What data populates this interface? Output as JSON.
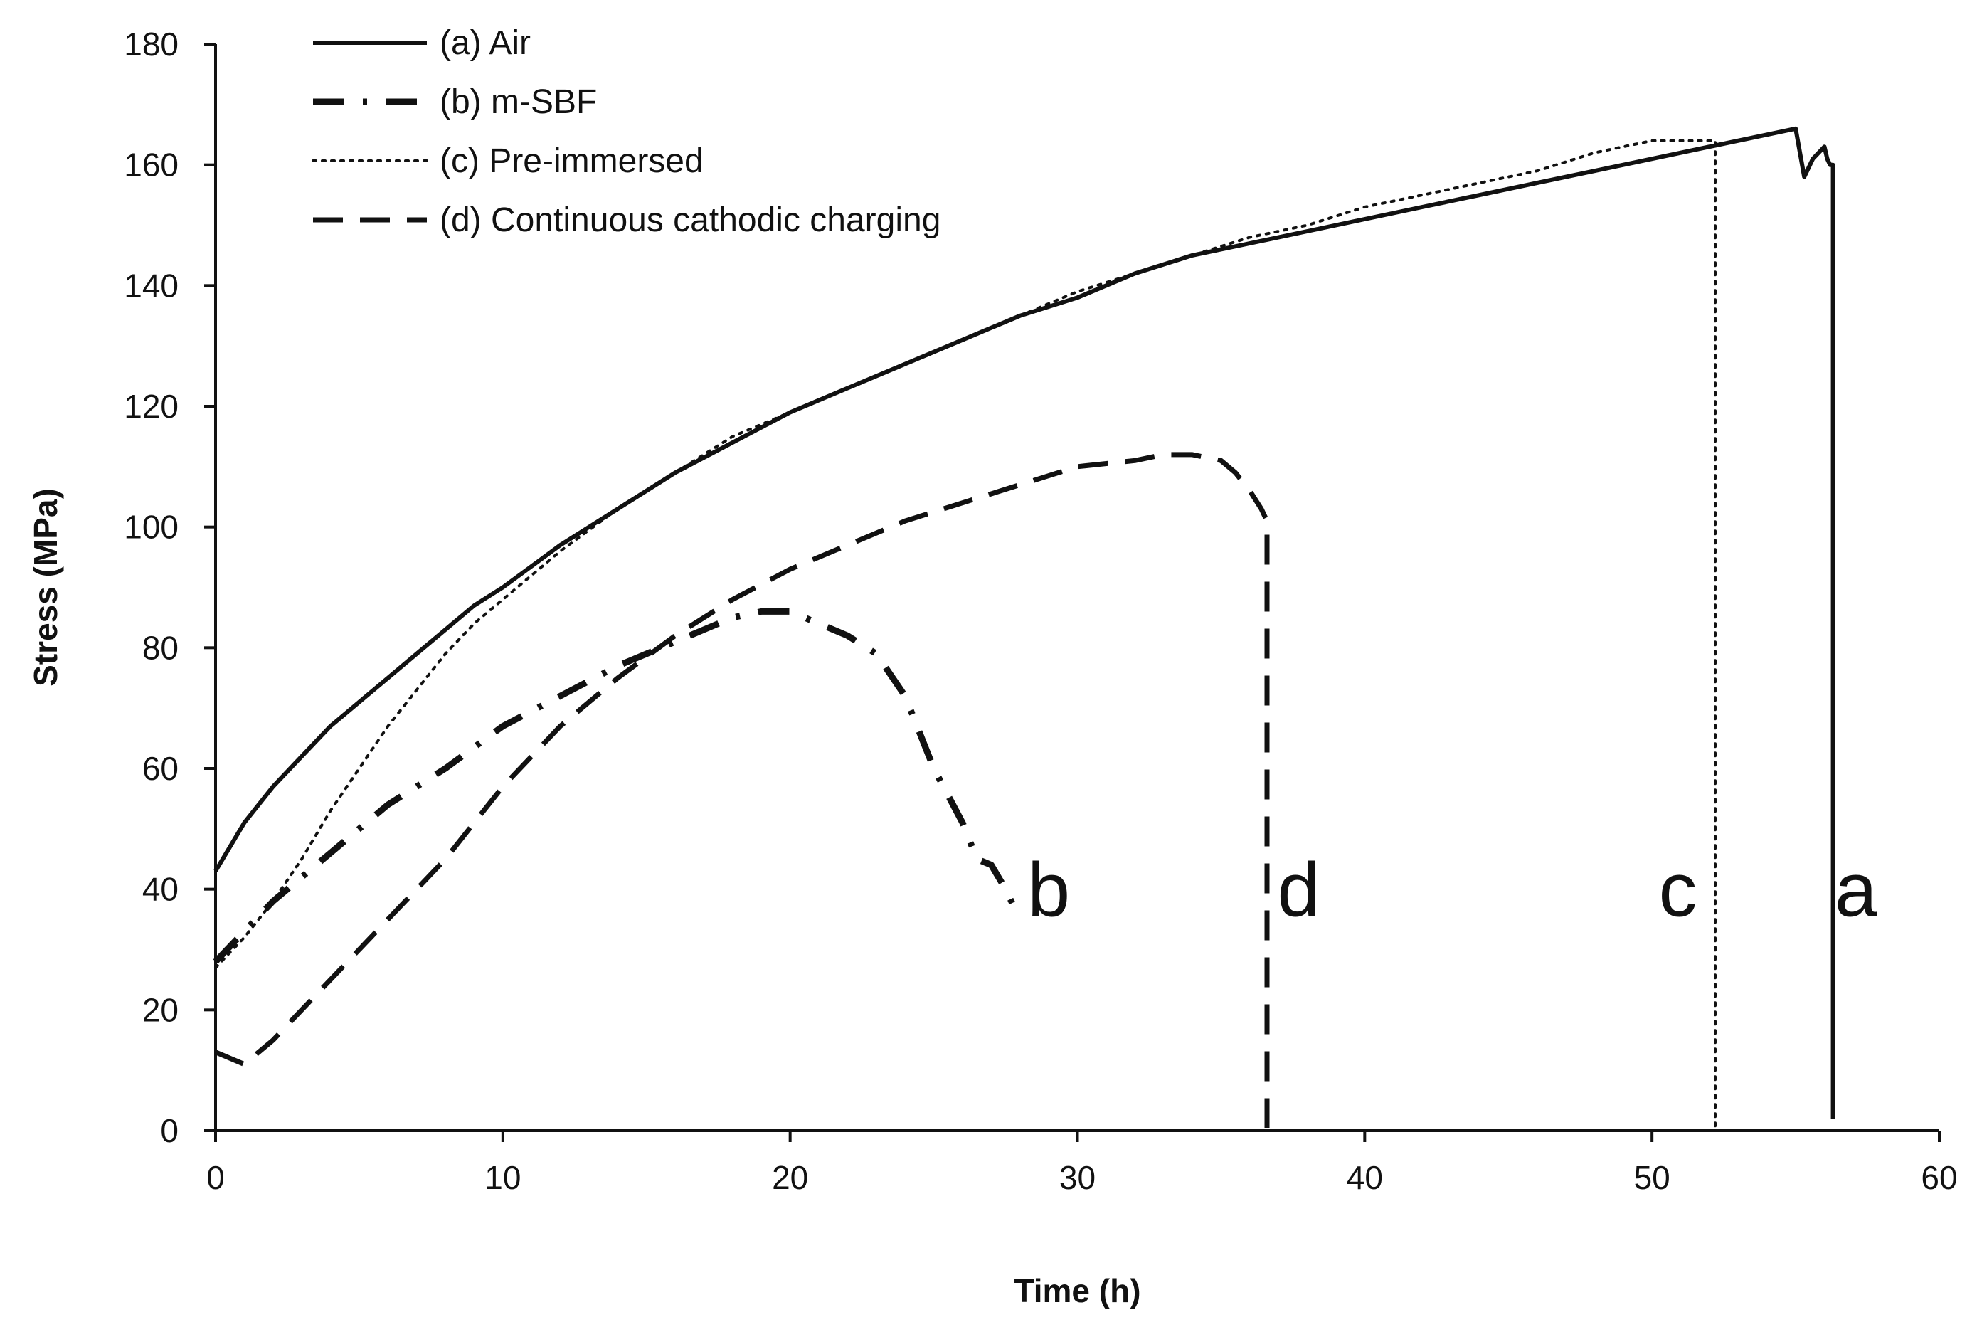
{
  "chart_data": {
    "type": "line",
    "title": "",
    "xlabel": "Time (h)",
    "ylabel": "Stress (MPa)",
    "xlim": [
      0,
      60
    ],
    "ylim": [
      0,
      180
    ],
    "xticks": [
      0,
      10,
      20,
      30,
      40,
      50,
      60
    ],
    "yticks": [
      0,
      20,
      40,
      60,
      80,
      100,
      120,
      140,
      160,
      180
    ],
    "grid": false,
    "legend_position": "top-left",
    "colors": {
      "line": "#111111",
      "axis": "#111111",
      "background": "#ffffff"
    },
    "series": [
      {
        "key": "a",
        "name": "(a) Air",
        "style": "solid",
        "x": [
          0,
          1,
          2,
          3,
          4,
          5,
          6,
          7,
          8,
          9,
          10,
          12,
          14,
          16,
          18,
          20,
          22,
          24,
          26,
          28,
          30,
          32,
          34,
          36,
          38,
          40,
          42,
          44,
          46,
          48,
          50,
          52,
          54,
          55,
          55.3,
          55.6,
          56,
          56.1,
          56.2,
          56.3,
          56.3
        ],
        "y": [
          43,
          51,
          57,
          62,
          67,
          71,
          75,
          79,
          83,
          87,
          90,
          97,
          103,
          109,
          114,
          119,
          123,
          127,
          131,
          135,
          138,
          142,
          145,
          147,
          149,
          151,
          153,
          155,
          157,
          159,
          161,
          163,
          165,
          166,
          158,
          161,
          163,
          161,
          160,
          160,
          2
        ]
      },
      {
        "key": "b",
        "name": "(b) m-SBF",
        "style": "dash-dot",
        "x": [
          0,
          1,
          2,
          3,
          4,
          5,
          6,
          8,
          10,
          12,
          14,
          16,
          17,
          18,
          19,
          20,
          21,
          22,
          23,
          24,
          25,
          26,
          26.5,
          27,
          27.5,
          28
        ],
        "y": [
          28,
          33,
          38,
          42,
          46,
          50,
          54,
          60,
          67,
          72,
          77,
          81,
          83,
          85,
          86,
          86,
          84,
          82,
          79,
          72,
          60,
          51,
          45,
          44,
          40,
          35
        ]
      },
      {
        "key": "c",
        "name": "(c) Pre-immersed",
        "style": "dotted",
        "x": [
          0,
          1,
          2,
          3,
          4,
          5,
          6,
          7,
          8,
          9,
          10,
          12,
          14,
          16,
          18,
          20,
          22,
          24,
          26,
          28,
          30,
          32,
          34,
          36,
          38,
          40,
          42,
          44,
          46,
          48,
          50,
          51,
          52,
          52.2,
          52.2
        ],
        "y": [
          27,
          32,
          38,
          45,
          53,
          60,
          67,
          73,
          79,
          84,
          88,
          96,
          103,
          109,
          115,
          119,
          123,
          127,
          131,
          135,
          139,
          142,
          145,
          148,
          150,
          153,
          155,
          157,
          159,
          162,
          164,
          164,
          164,
          164,
          0
        ]
      },
      {
        "key": "d",
        "name": "(d) Continuous cathodic charging",
        "style": "dashed",
        "x": [
          0,
          1,
          2,
          3,
          4,
          5,
          6,
          7,
          8,
          9,
          10,
          12,
          14,
          16,
          18,
          20,
          22,
          24,
          26,
          28,
          30,
          32,
          33,
          34,
          35,
          35.5,
          36,
          36.4,
          36.6,
          36.6,
          36.6
        ],
        "y": [
          13,
          11,
          15,
          20,
          25,
          30,
          35,
          40,
          45,
          51,
          57,
          67,
          75,
          82,
          88,
          93,
          97,
          101,
          104,
          107,
          110,
          111,
          112,
          112,
          111,
          109,
          106,
          103,
          101,
          60,
          0
        ]
      }
    ],
    "annotations": [
      {
        "text": "b",
        "x": 29,
        "y": 40
      },
      {
        "text": "d",
        "x": 37.7,
        "y": 40
      },
      {
        "text": "c",
        "x": 50.9,
        "y": 40
      },
      {
        "text": "a",
        "x": 57.1,
        "y": 40
      }
    ]
  }
}
